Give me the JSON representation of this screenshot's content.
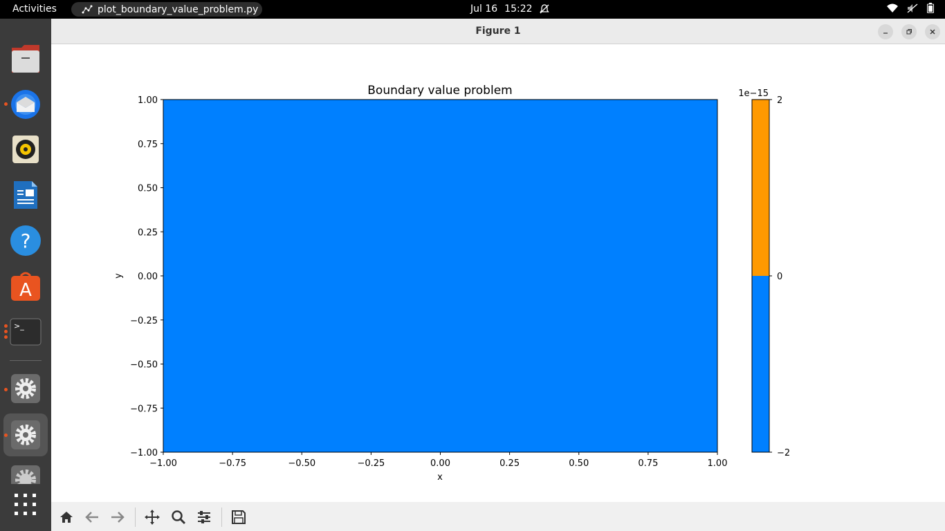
{
  "topbar": {
    "activities": "Activities",
    "app_name": "plot_boundary_value_problem.py",
    "date": "Jul 16",
    "time": "15:22"
  },
  "window": {
    "title": "Figure 1"
  },
  "chart_data": {
    "type": "heatmap",
    "title": "Boundary value problem",
    "xlabel": "x",
    "ylabel": "y",
    "xlim": [
      -1.0,
      1.0
    ],
    "ylim": [
      -1.0,
      1.0
    ],
    "x_ticks": [
      "−1.00",
      "−0.75",
      "−0.50",
      "−0.25",
      "0.00",
      "0.25",
      "0.50",
      "0.75",
      "1.00"
    ],
    "y_ticks": [
      "1.00",
      "0.75",
      "0.50",
      "0.25",
      "0.00",
      "−0.25",
      "−0.50",
      "−0.75",
      "−1.00"
    ],
    "fill_color": "#0080ff",
    "field_value": 0,
    "colorbar": {
      "multiplier": "1e−15",
      "ticks": [
        "2",
        "0",
        "−2"
      ],
      "levels": [
        {
          "from": 0,
          "to": 2,
          "color": "#ff9900"
        },
        {
          "from": -2,
          "to": 0,
          "color": "#0080ff"
        }
      ]
    }
  },
  "dock": {
    "items": [
      "files-icon",
      "thunderbird-icon",
      "rhythmbox-icon",
      "writer-icon",
      "help-icon",
      "app-center-icon",
      "terminal-icon",
      "settings-icon",
      "settings-icon",
      "settings-icon",
      "show-apps-icon"
    ]
  }
}
